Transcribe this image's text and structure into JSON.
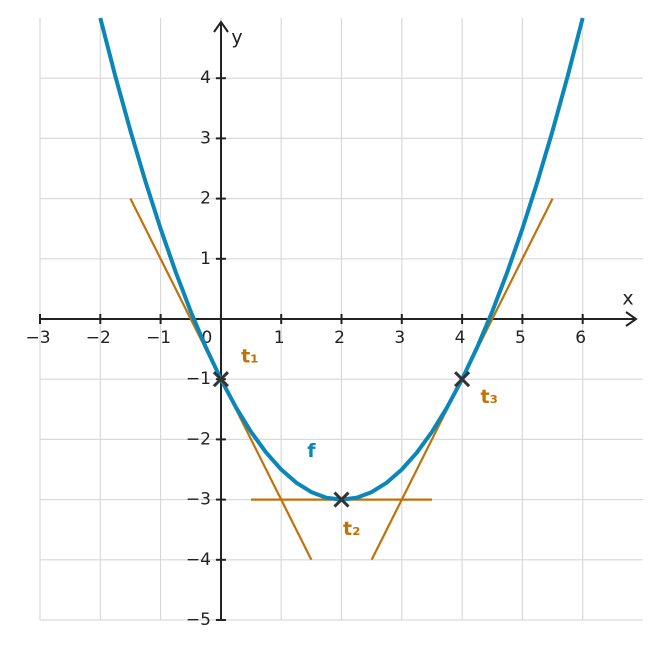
{
  "chart_data": {
    "type": "line",
    "x_label": "x",
    "y_label": "y",
    "xlim": [
      -3,
      7
    ],
    "ylim": [
      -5,
      5
    ],
    "xticks": [
      {
        "value": -3,
        "label": "−3"
      },
      {
        "value": -2,
        "label": "−2"
      },
      {
        "value": -1,
        "label": "−1"
      },
      0,
      1,
      2,
      3,
      4,
      5,
      6
    ],
    "yticks": [
      {
        "value": -5,
        "label": "−5"
      },
      {
        "value": -4,
        "label": "−4"
      },
      {
        "value": -3,
        "label": "−3"
      },
      {
        "value": -2,
        "label": "−2"
      },
      {
        "value": -1,
        "label": "−1"
      },
      1,
      2,
      3,
      4
    ],
    "grid": true,
    "series": [
      {
        "name": "t₁",
        "color": "#c0720a",
        "x": [
          -1.5,
          1.5
        ],
        "values": [
          2,
          -4
        ]
      },
      {
        "name": "t₂",
        "color": "#c0720a",
        "x": [
          0.5,
          3.5
        ],
        "values": [
          -3,
          -3
        ]
      },
      {
        "name": "t₃",
        "color": "#c0720a",
        "x": [
          2.5,
          5.5
        ],
        "values": [
          -4,
          2
        ]
      },
      {
        "name": "f",
        "color": "#0a86b8",
        "x": [
          -2,
          -1.75,
          -1.5,
          -1.25,
          -1,
          -0.75,
          -0.5,
          -0.25,
          0,
          0.25,
          0.5,
          0.75,
          1,
          1.25,
          1.5,
          1.75,
          2,
          2.25,
          2.5,
          2.75,
          3,
          3.25,
          3.5,
          3.75,
          4,
          4.25,
          4.5,
          4.75,
          5,
          5.25,
          5.5,
          5.75,
          6
        ],
        "values": [
          5,
          4.03125,
          3.125,
          2.28125,
          1.5,
          0.78125,
          0.125,
          -0.46875,
          -1,
          -1.46875,
          -1.875,
          -2.21875,
          -2.5,
          -2.71875,
          -2.875,
          -2.96875,
          -3,
          -2.96875,
          -2.875,
          -2.71875,
          -2.5,
          -2.21875,
          -1.875,
          -1.46875,
          -1,
          -0.46875,
          0.125,
          0.78125,
          1.5,
          2.28125,
          3.125,
          4.03125,
          5
        ]
      }
    ],
    "points": {
      "color": "#333333",
      "x": [
        0,
        2,
        4
      ],
      "values": [
        -1,
        -3,
        -1
      ]
    }
  }
}
